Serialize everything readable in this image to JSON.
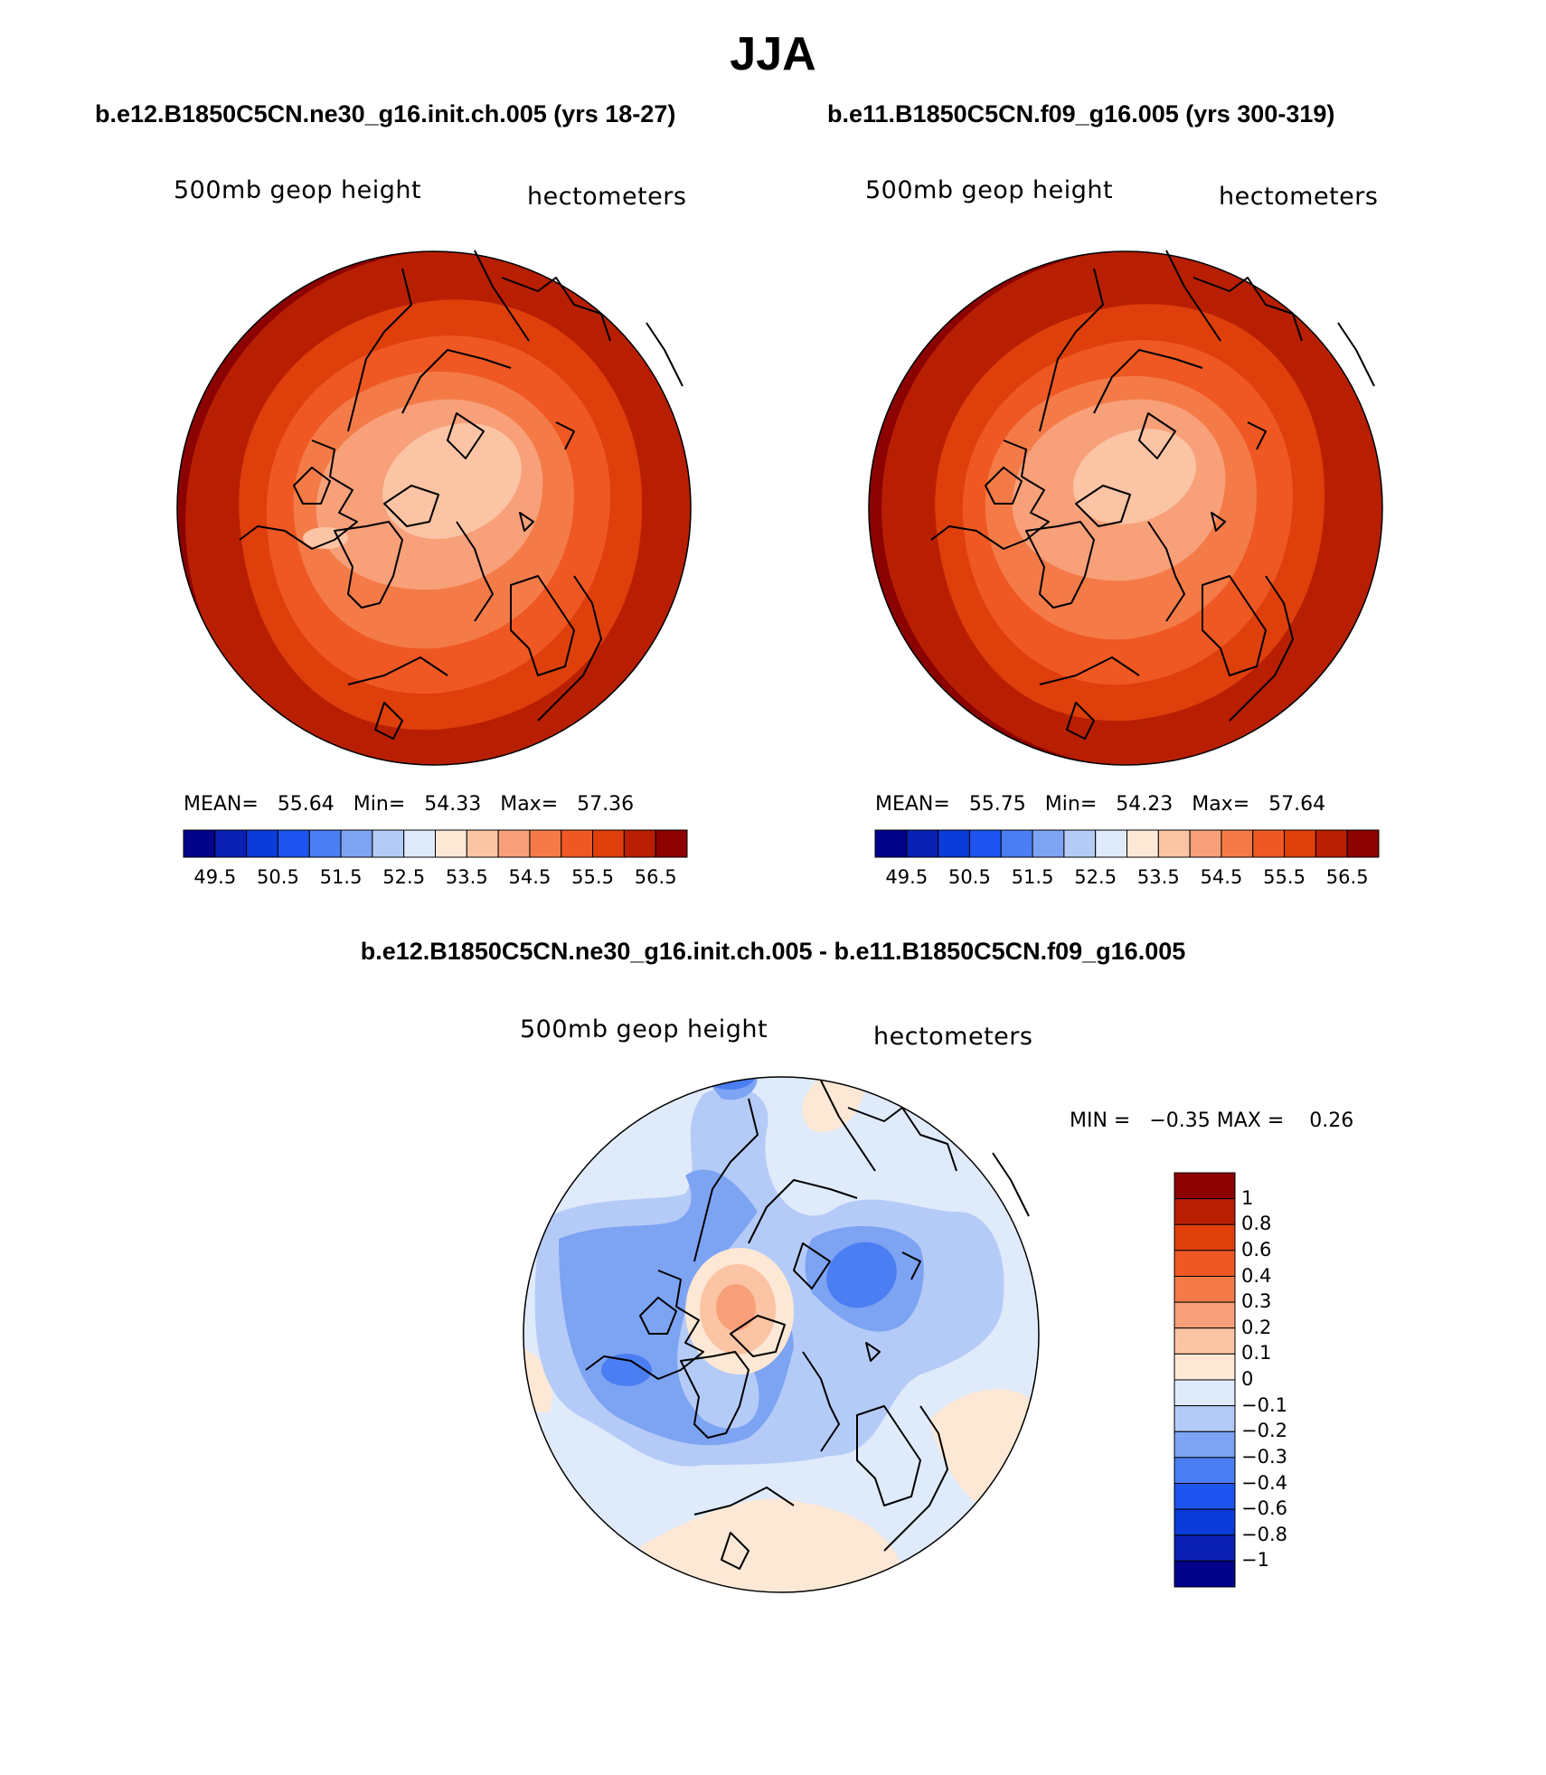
{
  "figure": {
    "title": "JJA",
    "variable_label": "500mb geop height",
    "units_label": "hectometers"
  },
  "panels": [
    {
      "case": "b.e12.B1850C5CN.ne30_g16.init.ch.005 (yrs 18-27)",
      "stats": {
        "mean_label": "MEAN=",
        "mean": "55.64",
        "min_label": "Min=",
        "min": "54.33",
        "max_label": "Max=",
        "max": "57.36"
      }
    },
    {
      "case": "b.e11.B1850C5CN.f09_g16.005 (yrs 300-319)",
      "stats": {
        "mean_label": "MEAN=",
        "mean": "55.75",
        "min_label": "Min=",
        "min": "54.23",
        "max_label": "Max=",
        "max": "57.64"
      }
    }
  ],
  "difference_panel": {
    "title": "b.e12.B1850C5CN.ne30_g16.init.ch.005 - b.e11.B1850C5CN.f09_g16.005",
    "min_label": "MIN =",
    "min": "−0.35",
    "max_label": "MAX =",
    "max": "0.26"
  },
  "colorbars": {
    "abs": {
      "colors": [
        "#02028a",
        "#0a1fb4",
        "#0b3bd8",
        "#1d54f0",
        "#4a7ef2",
        "#7da3f3",
        "#b5cbf7",
        "#dfeafb",
        "#fde8d6",
        "#fbc4a4",
        "#f8a07a",
        "#f47b48",
        "#ef5823",
        "#de3f0b",
        "#b81f02",
        "#8b0200"
      ],
      "tick_labels": [
        "49.5",
        "50.5",
        "51.5",
        "52.5",
        "53.5",
        "54.5",
        "55.5",
        "56.5"
      ]
    },
    "diff": {
      "colors_top_to_bottom": [
        "#8b0200",
        "#b81f02",
        "#de3f0b",
        "#ef5823",
        "#f47b48",
        "#f8a07a",
        "#fbc4a4",
        "#fde8d6",
        "#dfeafb",
        "#b5cbf7",
        "#7da3f3",
        "#4a7ef2",
        "#1d54f0",
        "#0b3bd8",
        "#0a1fb4",
        "#02028a"
      ],
      "tick_labels": [
        "1",
        "0.8",
        "0.6",
        "0.4",
        "0.3",
        "0.2",
        "0.1",
        "0",
        "−0.1",
        "−0.2",
        "−0.3",
        "−0.4",
        "−0.6",
        "−0.8",
        "−1"
      ]
    }
  }
}
